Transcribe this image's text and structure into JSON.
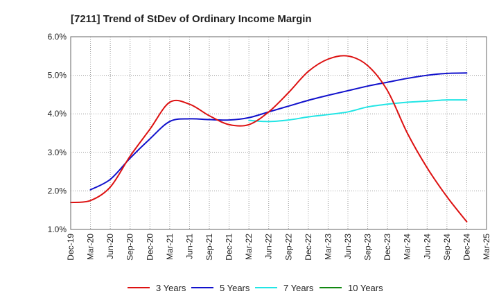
{
  "chart_data": {
    "type": "line",
    "title": "[7211]  Trend of StDev of Ordinary Income Margin",
    "xlabel": "",
    "ylabel": "",
    "ylim": [
      1.0,
      6.0
    ],
    "y_ticks": [
      "1.0%",
      "2.0%",
      "3.0%",
      "4.0%",
      "5.0%",
      "6.0%"
    ],
    "x_ticks": [
      "Dec-19",
      "Mar-20",
      "Jun-20",
      "Sep-20",
      "Dec-20",
      "Mar-21",
      "Jun-21",
      "Sep-21",
      "Dec-21",
      "Mar-22",
      "Jun-22",
      "Sep-22",
      "Dec-22",
      "Mar-23",
      "Jun-23",
      "Sep-23",
      "Dec-23",
      "Mar-24",
      "Jun-24",
      "Sep-24",
      "Dec-24",
      "Mar-25"
    ],
    "grid": true,
    "legend_position": "bottom",
    "series": [
      {
        "name": "3 Years",
        "color": "#dd1111",
        "values": [
          1.7,
          1.75,
          2.1,
          2.9,
          3.6,
          4.3,
          4.25,
          3.95,
          3.72,
          3.72,
          4.05,
          4.55,
          5.1,
          5.42,
          5.5,
          5.25,
          4.6,
          3.5,
          2.6,
          1.85,
          1.2
        ]
      },
      {
        "name": "5 Years",
        "color": "#1111cc",
        "values": [
          null,
          2.03,
          2.3,
          2.85,
          3.35,
          3.8,
          3.87,
          3.85,
          3.84,
          3.9,
          4.05,
          4.2,
          4.35,
          4.48,
          4.6,
          4.72,
          4.82,
          4.92,
          5.0,
          5.05,
          5.06
        ]
      },
      {
        "name": "7 Years",
        "color": "#22e5e5",
        "values": [
          null,
          null,
          null,
          null,
          null,
          null,
          null,
          null,
          null,
          3.83,
          3.8,
          3.84,
          3.92,
          3.98,
          4.05,
          4.18,
          4.25,
          4.3,
          4.33,
          4.36,
          4.36
        ]
      },
      {
        "name": "10 Years",
        "color": "#118811",
        "values": [
          null,
          null,
          null,
          null,
          null,
          null,
          null,
          null,
          null,
          null,
          null,
          null,
          null,
          null,
          null,
          null,
          null,
          null,
          null,
          null,
          null
        ]
      }
    ]
  }
}
